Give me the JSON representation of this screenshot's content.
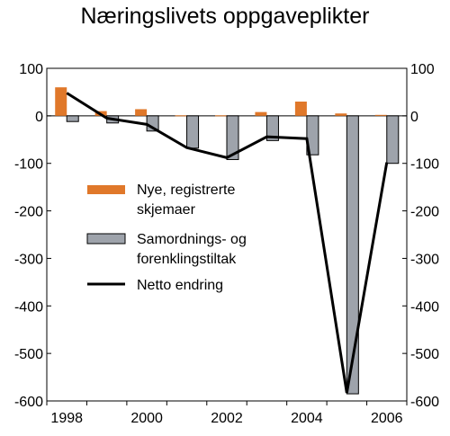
{
  "chart_data": {
    "type": "bar",
    "title": "Næringslivets oppgaveplikter",
    "xlabel": "",
    "ylabel": "",
    "ylim": [
      -600,
      100
    ],
    "y_ticks": [
      100,
      0,
      -100,
      -200,
      -300,
      -400,
      -500,
      -600
    ],
    "x_tick_labels": [
      "1998",
      "2000",
      "2002",
      "2004",
      "2006"
    ],
    "x_tick_positions": [
      1998,
      2000,
      2002,
      2004,
      2006
    ],
    "categories": [
      "1998",
      "1999",
      "2000",
      "2001",
      "2002",
      "2003",
      "2004",
      "2005",
      "2006"
    ],
    "series": [
      {
        "name": "Nye, registrerte skjemaer",
        "kind": "bar",
        "color": "#e0782a",
        "values": [
          60,
          10,
          14,
          1,
          1,
          8,
          30,
          5,
          2
        ]
      },
      {
        "name": "Samordnings- og forenklingstiltak",
        "kind": "bar",
        "color": "#9ea3ab",
        "values": [
          -12,
          -15,
          -32,
          -68,
          -92,
          -52,
          -82,
          -585,
          -100
        ]
      },
      {
        "name": "Netto endring",
        "kind": "line",
        "color": "#000000",
        "values": [
          48,
          -5,
          -18,
          -67,
          -88,
          -44,
          -48,
          -583,
          -98
        ]
      }
    ],
    "legend": {
      "placement": "center-left",
      "entries": [
        {
          "lines": [
            "Nye, registrerte",
            "skjemaer"
          ]
        },
        {
          "lines": [
            "Samordnings- og",
            "forenklingstiltak"
          ]
        },
        {
          "lines": [
            "Netto endring"
          ]
        }
      ]
    },
    "grid": false
  }
}
